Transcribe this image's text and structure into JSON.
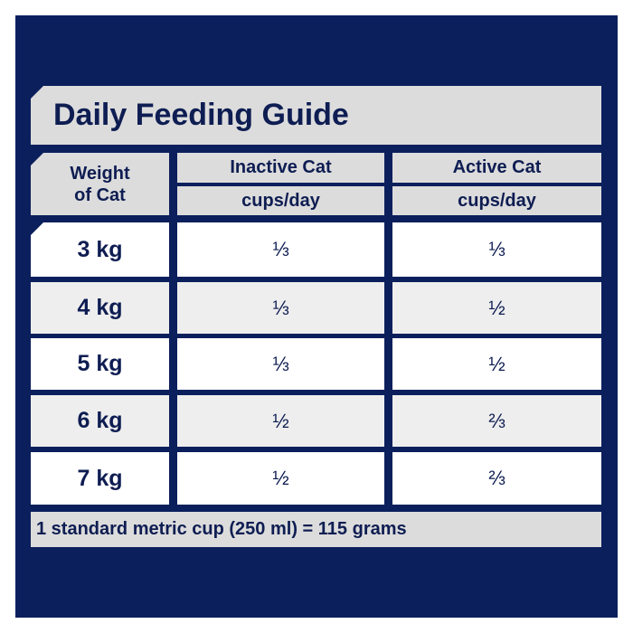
{
  "title": "Daily Feeding Guide",
  "header": {
    "weight": "Weight of Cat",
    "inactive": "Inactive Cat",
    "active": "Active Cat",
    "unit": "cups/day"
  },
  "rows": [
    {
      "weight": "3 kg",
      "inactive": "⅓",
      "active": "⅓"
    },
    {
      "weight": "4 kg",
      "inactive": "⅓",
      "active": "½"
    },
    {
      "weight": "5 kg",
      "inactive": "⅓",
      "active": "½"
    },
    {
      "weight": "6 kg",
      "inactive": "½",
      "active": "⅔"
    },
    {
      "weight": "7 kg",
      "inactive": "½",
      "active": "⅔"
    }
  ],
  "footer": "1 standard metric cup (250 ml) =  115 grams",
  "colors": {
    "navy": "#0b1f5c",
    "header_gray": "#dcdcdc",
    "row_light": "#eeeeee"
  }
}
